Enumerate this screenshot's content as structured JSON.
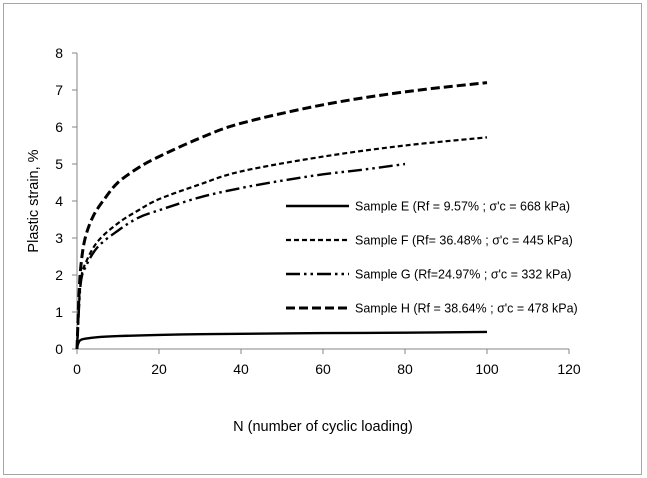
{
  "chart_data": {
    "type": "line",
    "title": "",
    "xlabel": "N (number of cyclic loading)",
    "ylabel": "Plastic strain, %",
    "xlim": [
      0,
      120
    ],
    "ylim": [
      0,
      8
    ],
    "x_ticks": [
      "0",
      "20",
      "40",
      "60",
      "80",
      "100",
      "120"
    ],
    "y_ticks": [
      "0",
      "1",
      "2",
      "3",
      "4",
      "5",
      "6",
      "7",
      "8"
    ],
    "grid": false,
    "legend_position": "center-right",
    "series": [
      {
        "name": "Sample E (Rf = 9.57% ; σ'c = 668 kPa)",
        "style": "solid",
        "x": [
          0,
          0.5,
          1,
          2,
          5,
          10,
          20,
          30,
          40,
          60,
          80,
          100
        ],
        "y": [
          0.05,
          0.2,
          0.25,
          0.28,
          0.32,
          0.35,
          0.38,
          0.4,
          0.41,
          0.43,
          0.44,
          0.46
        ]
      },
      {
        "name": "Sample F (Rf= 36.48% ; σ'c = 445 kPa)",
        "style": "short-dash",
        "x": [
          0,
          0.5,
          1,
          2,
          5,
          10,
          15,
          20,
          30,
          40,
          60,
          80,
          100
        ],
        "y": [
          0,
          1.2,
          1.9,
          2.3,
          2.9,
          3.4,
          3.75,
          4.05,
          4.45,
          4.8,
          5.2,
          5.5,
          5.72
        ]
      },
      {
        "name": "Sample G (Rf=24.97% ; σ'c = 332 kPa)",
        "style": "dash-dot-dot",
        "x": [
          0,
          0.5,
          1,
          2,
          5,
          10,
          15,
          20,
          30,
          40,
          50,
          60,
          70,
          80
        ],
        "y": [
          0,
          1.15,
          1.85,
          2.2,
          2.75,
          3.2,
          3.55,
          3.75,
          4.1,
          4.35,
          4.55,
          4.72,
          4.85,
          5.0
        ]
      },
      {
        "name": "Sample H (Rf = 38.64% ; σ'c = 478 kPa)",
        "style": "long-dash",
        "x": [
          0,
          0.5,
          1,
          2,
          4,
          7,
          10,
          15,
          20,
          30,
          40,
          60,
          80,
          100
        ],
        "y": [
          0,
          1.5,
          2.3,
          3.0,
          3.6,
          4.1,
          4.5,
          4.9,
          5.2,
          5.7,
          6.1,
          6.6,
          6.95,
          7.2
        ]
      }
    ]
  }
}
